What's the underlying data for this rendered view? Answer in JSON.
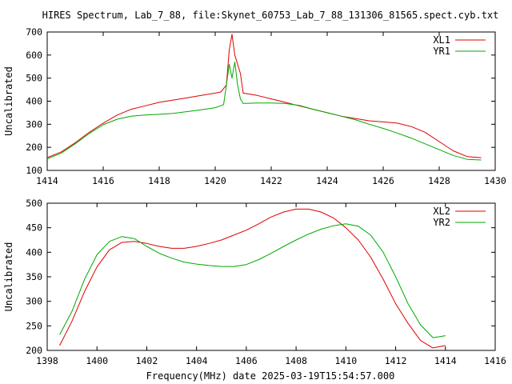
{
  "title": "HIRES Spectrum, Lab_7_88, file:Skynet_60753_Lab_7_88_131306_81565.spect.cyb.txt",
  "xlabel_bottom": "Frequency(MHz) date 2025-03-19T15:54:57.000",
  "colors": {
    "red": "#dd0000",
    "green": "#00aa00",
    "axis": "#000000",
    "background": "#ffffff"
  },
  "chart_data": [
    {
      "type": "line",
      "ylabel": "Uncalibrated",
      "xlim": [
        1414,
        1430
      ],
      "ylim": [
        100,
        700
      ],
      "xticks": [
        1414,
        1416,
        1418,
        1420,
        1422,
        1424,
        1426,
        1428,
        1430
      ],
      "yticks": [
        100,
        200,
        300,
        400,
        500,
        600,
        700
      ],
      "legend_position": "top-right",
      "series": [
        {
          "name": "XL1",
          "color": "#dd0000",
          "x": [
            1414.0,
            1414.5,
            1415.0,
            1415.5,
            1416.0,
            1416.5,
            1417.0,
            1417.5,
            1418.0,
            1418.5,
            1419.0,
            1419.5,
            1420.0,
            1420.2,
            1420.4,
            1420.5,
            1420.6,
            1420.7,
            1420.8,
            1420.9,
            1421.0,
            1421.5,
            1422.0,
            1422.5,
            1423.0,
            1423.5,
            1424.0,
            1424.5,
            1425.0,
            1425.5,
            1426.0,
            1426.5,
            1427.0,
            1427.5,
            1428.0,
            1428.5,
            1429.0,
            1429.5
          ],
          "y": [
            155,
            180,
            220,
            265,
            305,
            340,
            365,
            380,
            395,
            405,
            415,
            425,
            435,
            440,
            470,
            620,
            690,
            600,
            560,
            520,
            435,
            425,
            410,
            395,
            380,
            365,
            350,
            335,
            325,
            315,
            310,
            305,
            290,
            265,
            225,
            185,
            160,
            155
          ]
        },
        {
          "name": "YR1",
          "color": "#00aa00",
          "x": [
            1414.0,
            1414.5,
            1415.0,
            1415.5,
            1416.0,
            1416.5,
            1417.0,
            1417.5,
            1418.0,
            1418.5,
            1419.0,
            1419.5,
            1420.0,
            1420.3,
            1420.4,
            1420.5,
            1420.6,
            1420.7,
            1420.8,
            1420.9,
            1421.0,
            1421.5,
            1422.0,
            1422.5,
            1423.0,
            1423.5,
            1424.0,
            1424.5,
            1425.0,
            1425.5,
            1426.0,
            1426.5,
            1427.0,
            1427.5,
            1428.0,
            1428.5,
            1429.0,
            1429.5
          ],
          "y": [
            150,
            175,
            215,
            260,
            298,
            322,
            335,
            340,
            343,
            347,
            355,
            363,
            372,
            385,
            470,
            560,
            500,
            570,
            470,
            410,
            390,
            392,
            392,
            390,
            382,
            365,
            350,
            335,
            320,
            300,
            282,
            262,
            240,
            215,
            190,
            165,
            148,
            145
          ]
        }
      ]
    },
    {
      "type": "line",
      "ylabel": "Uncalibrated",
      "xlim": [
        1398,
        1416
      ],
      "ylim": [
        200,
        500
      ],
      "xticks": [
        1398,
        1400,
        1402,
        1404,
        1406,
        1408,
        1410,
        1412,
        1414,
        1416
      ],
      "yticks": [
        200,
        250,
        300,
        350,
        400,
        450,
        500
      ],
      "legend_position": "top-right",
      "series": [
        {
          "name": "XL2",
          "color": "#dd0000",
          "x": [
            1398.5,
            1399.0,
            1399.5,
            1400.0,
            1400.5,
            1401.0,
            1401.5,
            1402.0,
            1402.5,
            1403.0,
            1403.5,
            1404.0,
            1404.5,
            1405.0,
            1405.5,
            1406.0,
            1406.5,
            1407.0,
            1407.5,
            1408.0,
            1408.5,
            1409.0,
            1409.5,
            1410.0,
            1410.5,
            1411.0,
            1411.5,
            1412.0,
            1412.5,
            1413.0,
            1413.5,
            1414.0
          ],
          "y": [
            210,
            260,
            320,
            370,
            405,
            420,
            422,
            418,
            412,
            408,
            408,
            412,
            418,
            425,
            435,
            445,
            458,
            472,
            482,
            488,
            488,
            482,
            470,
            450,
            425,
            390,
            345,
            295,
            255,
            220,
            205,
            210
          ]
        },
        {
          "name": "YR2",
          "color": "#00aa00",
          "x": [
            1398.5,
            1399.0,
            1399.5,
            1400.0,
            1400.5,
            1401.0,
            1401.5,
            1402.0,
            1402.5,
            1403.0,
            1403.5,
            1404.0,
            1404.5,
            1405.0,
            1405.5,
            1406.0,
            1406.5,
            1407.0,
            1407.5,
            1408.0,
            1408.5,
            1409.0,
            1409.5,
            1410.0,
            1410.5,
            1411.0,
            1411.5,
            1412.0,
            1412.5,
            1413.0,
            1413.5,
            1414.0
          ],
          "y": [
            232,
            280,
            345,
            395,
            422,
            432,
            428,
            412,
            398,
            388,
            380,
            376,
            373,
            371,
            371,
            375,
            385,
            398,
            412,
            425,
            437,
            447,
            454,
            458,
            453,
            435,
            400,
            350,
            295,
            252,
            226,
            230
          ]
        }
      ]
    }
  ]
}
